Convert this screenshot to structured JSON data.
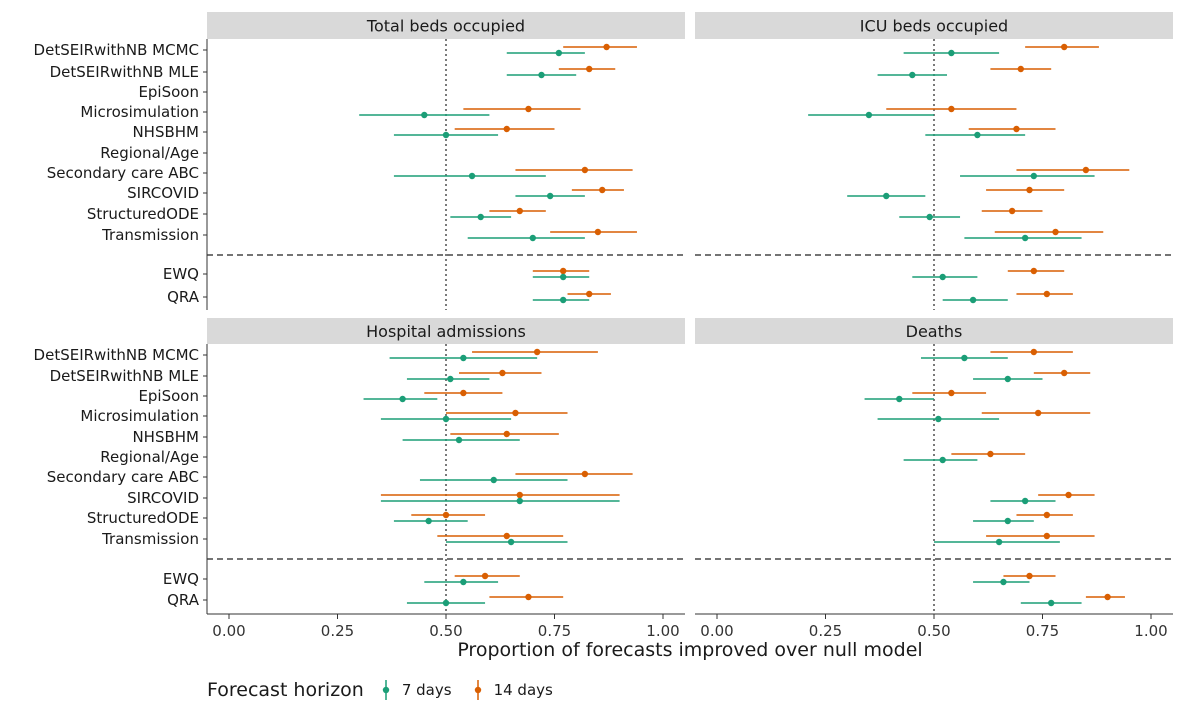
{
  "chart_data": {
    "type": "scatter",
    "xlabel": "Proportion of forecasts improved over null model",
    "xlim": [
      0,
      1
    ],
    "x_ticks": [
      "0.00",
      "0.25",
      "0.50",
      "0.75",
      "1.00"
    ],
    "reference_line_x": 0.5,
    "models": [
      "DetSEIRwithNB MCMC",
      "DetSEIRwithNB MLE",
      "EpiSoon",
      "Microsimulation",
      "NHSBHM",
      "Regional/Age",
      "Secondary care ABC",
      "SIRCOVID",
      "StructuredODE",
      "Transmission"
    ],
    "ensembles": [
      "EWQ",
      "QRA"
    ],
    "legend": {
      "title": "Forecast horizon",
      "position": "bottom",
      "items": [
        {
          "name": "7 days",
          "color": "#1b9e77"
        },
        {
          "name": "14 days",
          "color": "#d95f02"
        }
      ]
    },
    "series_colors": {
      "7 days": "#1b9e77",
      "14 days": "#d95f02"
    },
    "panels": [
      {
        "title": "Total beds occupied",
        "points": [
          {
            "label": "DetSEIRwithNB MCMC",
            "h7": {
              "est": 0.76,
              "lo": 0.64,
              "hi": 0.82
            },
            "h14": {
              "est": 0.87,
              "lo": 0.77,
              "hi": 0.94
            }
          },
          {
            "label": "DetSEIRwithNB MLE",
            "h7": {
              "est": 0.72,
              "lo": 0.64,
              "hi": 0.8
            },
            "h14": {
              "est": 0.83,
              "lo": 0.76,
              "hi": 0.89
            }
          },
          {
            "label": "EpiSoon",
            "h7": null,
            "h14": null
          },
          {
            "label": "Microsimulation",
            "h7": {
              "est": 0.45,
              "lo": 0.3,
              "hi": 0.6
            },
            "h14": {
              "est": 0.69,
              "lo": 0.54,
              "hi": 0.81
            }
          },
          {
            "label": "NHSBHM",
            "h7": {
              "est": 0.5,
              "lo": 0.38,
              "hi": 0.62
            },
            "h14": {
              "est": 0.64,
              "lo": 0.52,
              "hi": 0.75
            }
          },
          {
            "label": "Regional/Age",
            "h7": null,
            "h14": null
          },
          {
            "label": "Secondary care ABC",
            "h7": {
              "est": 0.56,
              "lo": 0.38,
              "hi": 0.73
            },
            "h14": {
              "est": 0.82,
              "lo": 0.66,
              "hi": 0.93
            }
          },
          {
            "label": "SIRCOVID",
            "h7": {
              "est": 0.74,
              "lo": 0.66,
              "hi": 0.82
            },
            "h14": {
              "est": 0.86,
              "lo": 0.79,
              "hi": 0.91
            }
          },
          {
            "label": "StructuredODE",
            "h7": {
              "est": 0.58,
              "lo": 0.51,
              "hi": 0.65
            },
            "h14": {
              "est": 0.67,
              "lo": 0.6,
              "hi": 0.73
            }
          },
          {
            "label": "Transmission",
            "h7": {
              "est": 0.7,
              "lo": 0.55,
              "hi": 0.82
            },
            "h14": {
              "est": 0.85,
              "lo": 0.74,
              "hi": 0.94
            }
          },
          {
            "label": "EWQ",
            "h7": {
              "est": 0.77,
              "lo": 0.7,
              "hi": 0.83
            },
            "h14": {
              "est": 0.77,
              "lo": 0.7,
              "hi": 0.83
            }
          },
          {
            "label": "QRA",
            "h7": {
              "est": 0.77,
              "lo": 0.7,
              "hi": 0.83
            },
            "h14": {
              "est": 0.83,
              "lo": 0.78,
              "hi": 0.88
            }
          }
        ]
      },
      {
        "title": "ICU beds occupied",
        "points": [
          {
            "label": "DetSEIRwithNB MCMC",
            "h7": {
              "est": 0.54,
              "lo": 0.43,
              "hi": 0.65
            },
            "h14": {
              "est": 0.8,
              "lo": 0.71,
              "hi": 0.88
            }
          },
          {
            "label": "DetSEIRwithNB MLE",
            "h7": {
              "est": 0.45,
              "lo": 0.37,
              "hi": 0.53
            },
            "h14": {
              "est": 0.7,
              "lo": 0.63,
              "hi": 0.77
            }
          },
          {
            "label": "EpiSoon",
            "h7": null,
            "h14": null
          },
          {
            "label": "Microsimulation",
            "h7": {
              "est": 0.35,
              "lo": 0.21,
              "hi": 0.5
            },
            "h14": {
              "est": 0.54,
              "lo": 0.39,
              "hi": 0.69
            }
          },
          {
            "label": "NHSBHM",
            "h7": {
              "est": 0.6,
              "lo": 0.48,
              "hi": 0.71
            },
            "h14": {
              "est": 0.69,
              "lo": 0.58,
              "hi": 0.78
            }
          },
          {
            "label": "Regional/Age",
            "h7": null,
            "h14": null
          },
          {
            "label": "Secondary care ABC",
            "h7": {
              "est": 0.73,
              "lo": 0.56,
              "hi": 0.87
            },
            "h14": {
              "est": 0.85,
              "lo": 0.69,
              "hi": 0.95
            }
          },
          {
            "label": "SIRCOVID",
            "h7": {
              "est": 0.39,
              "lo": 0.3,
              "hi": 0.48
            },
            "h14": {
              "est": 0.72,
              "lo": 0.62,
              "hi": 0.8
            }
          },
          {
            "label": "StructuredODE",
            "h7": {
              "est": 0.49,
              "lo": 0.42,
              "hi": 0.56
            },
            "h14": {
              "est": 0.68,
              "lo": 0.61,
              "hi": 0.75
            }
          },
          {
            "label": "Transmission",
            "h7": {
              "est": 0.71,
              "lo": 0.57,
              "hi": 0.84
            },
            "h14": {
              "est": 0.78,
              "lo": 0.64,
              "hi": 0.89
            }
          },
          {
            "label": "EWQ",
            "h7": {
              "est": 0.52,
              "lo": 0.45,
              "hi": 0.6
            },
            "h14": {
              "est": 0.73,
              "lo": 0.67,
              "hi": 0.8
            }
          },
          {
            "label": "QRA",
            "h7": {
              "est": 0.59,
              "lo": 0.52,
              "hi": 0.67
            },
            "h14": {
              "est": 0.76,
              "lo": 0.69,
              "hi": 0.82
            }
          }
        ]
      },
      {
        "title": "Hospital admissions",
        "points": [
          {
            "label": "DetSEIRwithNB MCMC",
            "h7": {
              "est": 0.54,
              "lo": 0.37,
              "hi": 0.71
            },
            "h14": {
              "est": 0.71,
              "lo": 0.56,
              "hi": 0.85
            }
          },
          {
            "label": "DetSEIRwithNB MLE",
            "h7": {
              "est": 0.51,
              "lo": 0.41,
              "hi": 0.6
            },
            "h14": {
              "est": 0.63,
              "lo": 0.53,
              "hi": 0.72
            }
          },
          {
            "label": "EpiSoon",
            "h7": {
              "est": 0.4,
              "lo": 0.31,
              "hi": 0.48
            },
            "h14": {
              "est": 0.54,
              "lo": 0.45,
              "hi": 0.63
            }
          },
          {
            "label": "Microsimulation",
            "h7": {
              "est": 0.5,
              "lo": 0.35,
              "hi": 0.65
            },
            "h14": {
              "est": 0.66,
              "lo": 0.5,
              "hi": 0.78
            }
          },
          {
            "label": "NHSBHM",
            "h7": {
              "est": 0.53,
              "lo": 0.4,
              "hi": 0.67
            },
            "h14": {
              "est": 0.64,
              "lo": 0.51,
              "hi": 0.76
            }
          },
          {
            "label": "Regional/Age",
            "h7": null,
            "h14": null
          },
          {
            "label": "Secondary care ABC",
            "h7": {
              "est": 0.61,
              "lo": 0.44,
              "hi": 0.78
            },
            "h14": {
              "est": 0.82,
              "lo": 0.66,
              "hi": 0.93
            }
          },
          {
            "label": "SIRCOVID",
            "h7": {
              "est": 0.67,
              "lo": 0.35,
              "hi": 0.9
            },
            "h14": {
              "est": 0.67,
              "lo": 0.35,
              "hi": 0.9
            }
          },
          {
            "label": "StructuredODE",
            "h7": {
              "est": 0.46,
              "lo": 0.38,
              "hi": 0.55
            },
            "h14": {
              "est": 0.5,
              "lo": 0.42,
              "hi": 0.59
            }
          },
          {
            "label": "Transmission",
            "h7": {
              "est": 0.65,
              "lo": 0.5,
              "hi": 0.78
            },
            "h14": {
              "est": 0.64,
              "lo": 0.48,
              "hi": 0.77
            }
          },
          {
            "label": "EWQ",
            "h7": {
              "est": 0.54,
              "lo": 0.45,
              "hi": 0.62
            },
            "h14": {
              "est": 0.59,
              "lo": 0.52,
              "hi": 0.67
            }
          },
          {
            "label": "QRA",
            "h7": {
              "est": 0.5,
              "lo": 0.41,
              "hi": 0.59
            },
            "h14": {
              "est": 0.69,
              "lo": 0.6,
              "hi": 0.77
            }
          }
        ]
      },
      {
        "title": "Deaths",
        "points": [
          {
            "label": "DetSEIRwithNB MCMC",
            "h7": {
              "est": 0.57,
              "lo": 0.47,
              "hi": 0.67
            },
            "h14": {
              "est": 0.73,
              "lo": 0.63,
              "hi": 0.82
            }
          },
          {
            "label": "DetSEIRwithNB MLE",
            "h7": {
              "est": 0.67,
              "lo": 0.59,
              "hi": 0.75
            },
            "h14": {
              "est": 0.8,
              "lo": 0.73,
              "hi": 0.86
            }
          },
          {
            "label": "EpiSoon",
            "h7": {
              "est": 0.42,
              "lo": 0.34,
              "hi": 0.5
            },
            "h14": {
              "est": 0.54,
              "lo": 0.45,
              "hi": 0.62
            }
          },
          {
            "label": "Microsimulation",
            "h7": {
              "est": 0.51,
              "lo": 0.37,
              "hi": 0.65
            },
            "h14": {
              "est": 0.74,
              "lo": 0.61,
              "hi": 0.86
            }
          },
          {
            "label": "NHSBHM",
            "h7": null,
            "h14": null
          },
          {
            "label": "Regional/Age",
            "h7": {
              "est": 0.52,
              "lo": 0.43,
              "hi": 0.6
            },
            "h14": {
              "est": 0.63,
              "lo": 0.54,
              "hi": 0.71
            }
          },
          {
            "label": "Secondary care ABC",
            "h7": null,
            "h14": null
          },
          {
            "label": "SIRCOVID",
            "h7": {
              "est": 0.71,
              "lo": 0.63,
              "hi": 0.78
            },
            "h14": {
              "est": 0.81,
              "lo": 0.74,
              "hi": 0.87
            }
          },
          {
            "label": "StructuredODE",
            "h7": {
              "est": 0.67,
              "lo": 0.59,
              "hi": 0.73
            },
            "h14": {
              "est": 0.76,
              "lo": 0.69,
              "hi": 0.82
            }
          },
          {
            "label": "Transmission",
            "h7": {
              "est": 0.65,
              "lo": 0.5,
              "hi": 0.79
            },
            "h14": {
              "est": 0.76,
              "lo": 0.62,
              "hi": 0.87
            }
          },
          {
            "label": "EWQ",
            "h7": {
              "est": 0.66,
              "lo": 0.59,
              "hi": 0.72
            },
            "h14": {
              "est": 0.72,
              "lo": 0.66,
              "hi": 0.78
            }
          },
          {
            "label": "QRA",
            "h7": {
              "est": 0.77,
              "lo": 0.7,
              "hi": 0.84
            },
            "h14": {
              "est": 0.9,
              "lo": 0.85,
              "hi": 0.94
            }
          }
        ]
      }
    ]
  }
}
